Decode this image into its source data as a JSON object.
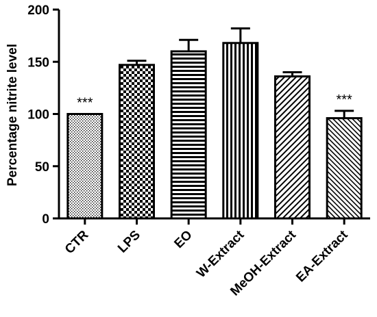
{
  "chart_data": {
    "type": "bar",
    "title": "",
    "xlabel": "",
    "ylabel": "Percentage nitrite level",
    "ylim": [
      0,
      200
    ],
    "yticks": [
      0,
      50,
      100,
      150,
      200
    ],
    "grid": false,
    "categories": [
      "CTR",
      "LPS",
      "EO",
      "W-Extract",
      "MeOH-Extract",
      "EA-Extract"
    ],
    "values": [
      100,
      147,
      160,
      168,
      136,
      96
    ],
    "error_bars": [
      0,
      4,
      11,
      14,
      4,
      7
    ],
    "annotations": [
      "***",
      "",
      "",
      "",
      "",
      "***"
    ],
    "fill_patterns": [
      "dots",
      "checker",
      "horizontal-lines",
      "vertical-lines",
      "diagonal-lines",
      "diagonal-lines-fine"
    ],
    "colors": {
      "bar_stroke": "#000000",
      "pattern_ink": "#000000",
      "background": "#ffffff"
    }
  }
}
